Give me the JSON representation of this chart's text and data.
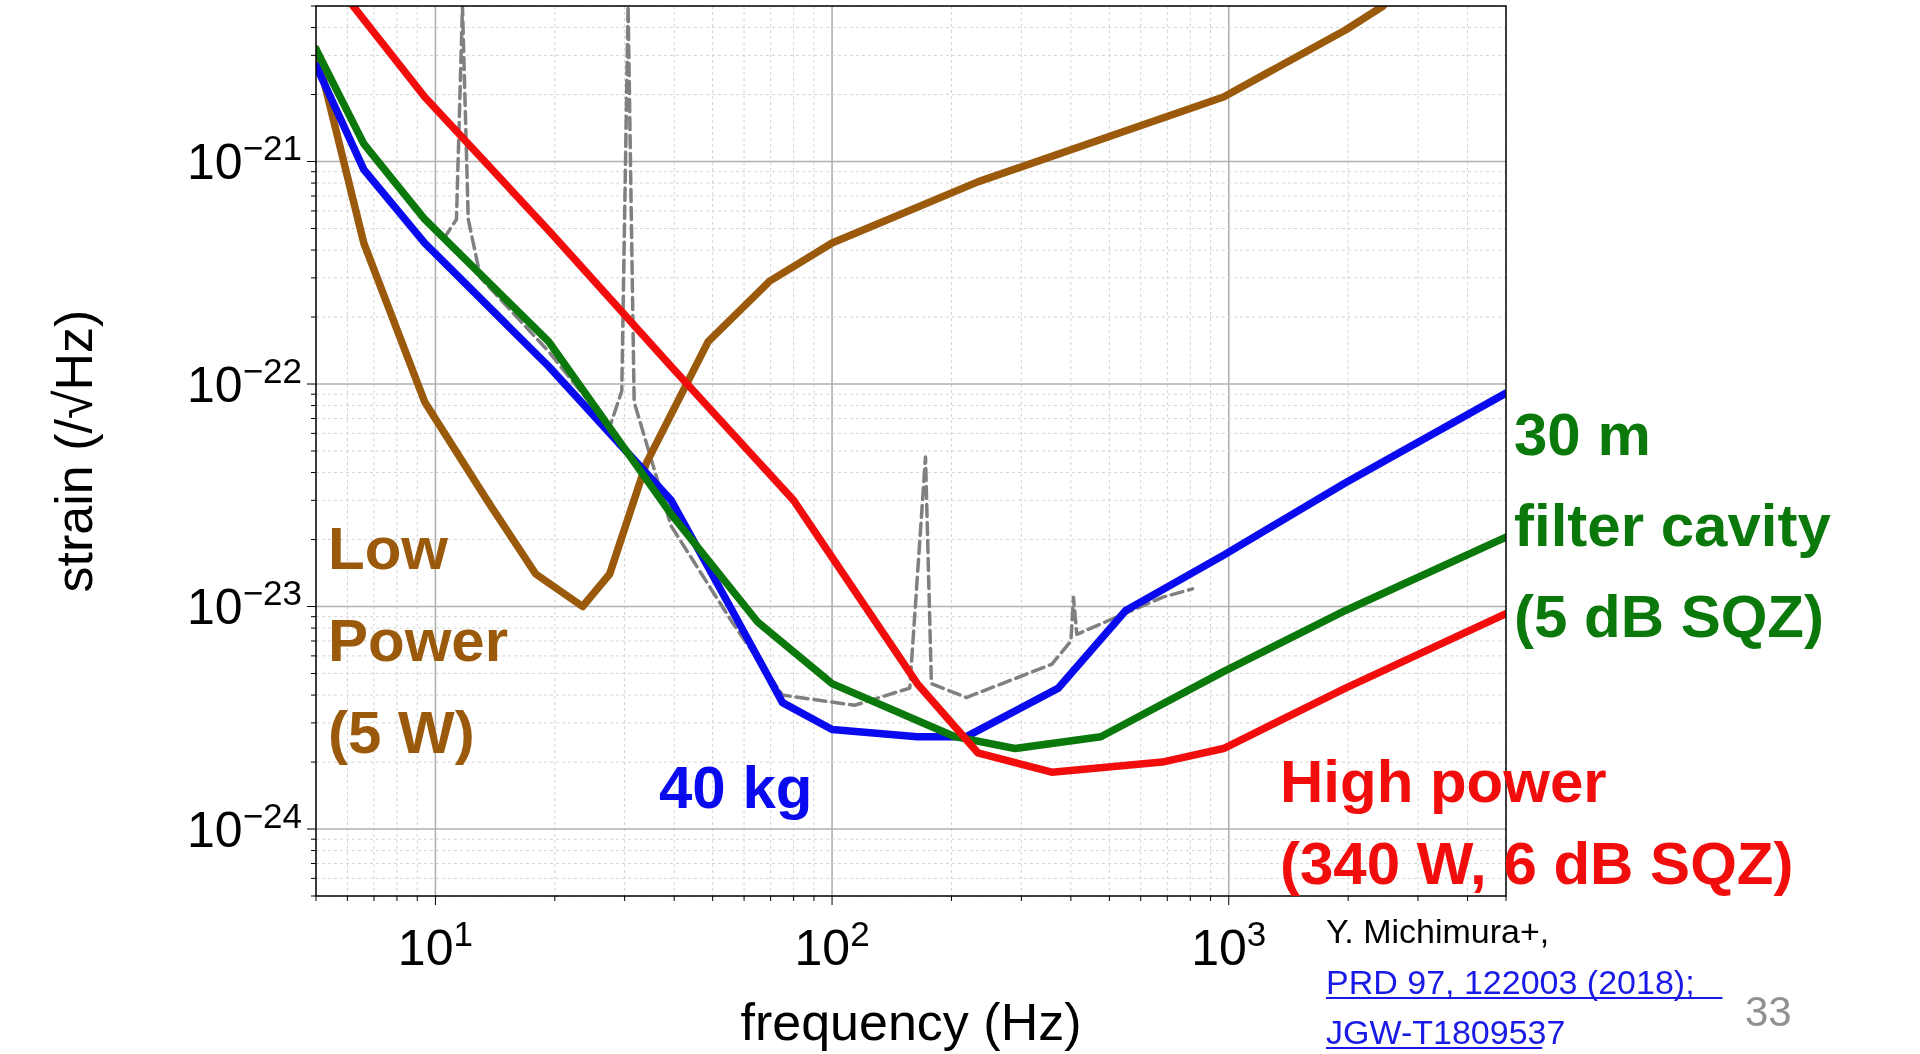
{
  "chart_data": {
    "type": "line",
    "xlabel": "frequency (Hz)",
    "ylabel": "strain (/√Hz)",
    "log": "xy",
    "grid": true,
    "xlim": [
      5,
      5000
    ],
    "ylim": [
      5e-25,
      5e-21
    ],
    "xticks": [
      {
        "value": 5,
        "label": null
      },
      {
        "value": 6,
        "label": null
      },
      {
        "value": 7,
        "label": null
      },
      {
        "value": 8,
        "label": null
      },
      {
        "value": 9,
        "label": null
      },
      {
        "value": 10,
        "label": "10$^{1}$"
      },
      {
        "value": 20,
        "label": null
      },
      {
        "value": 30,
        "label": null
      },
      {
        "value": 40,
        "label": null
      },
      {
        "value": 50,
        "label": null
      },
      {
        "value": 60,
        "label": null
      },
      {
        "value": 70,
        "label": null
      },
      {
        "value": 80,
        "label": null
      },
      {
        "value": 90,
        "label": null
      },
      {
        "value": 100,
        "label": "10$^{2}$"
      },
      {
        "value": 200,
        "label": null
      },
      {
        "value": 300,
        "label": null
      },
      {
        "value": 400,
        "label": null
      },
      {
        "value": 500,
        "label": null
      },
      {
        "value": 600,
        "label": null
      },
      {
        "value": 700,
        "label": null
      },
      {
        "value": 800,
        "label": null
      },
      {
        "value": 900,
        "label": null
      },
      {
        "value": 1000,
        "label": "10$^{3}$"
      },
      {
        "value": 2000,
        "label": null
      },
      {
        "value": 3000,
        "label": null
      },
      {
        "value": 4000,
        "label": null
      },
      {
        "value": 5000,
        "label": null
      }
    ],
    "yticks": [
      {
        "value": 5e-25,
        "label": null
      },
      {
        "value": 6e-25,
        "label": null
      },
      {
        "value": 7e-25,
        "label": null
      },
      {
        "value": 8e-25,
        "label": null
      },
      {
        "value": 9e-25,
        "label": null
      },
      {
        "value": 1e-24,
        "label": "10$^{−24}$"
      },
      {
        "value": 2e-24,
        "label": null
      },
      {
        "value": 3e-24,
        "label": null
      },
      {
        "value": 4e-24,
        "label": null
      },
      {
        "value": 5e-24,
        "label": null
      },
      {
        "value": 6e-24,
        "label": null
      },
      {
        "value": 7e-24,
        "label": null
      },
      {
        "value": 8e-24,
        "label": null
      },
      {
        "value": 9e-24,
        "label": null
      },
      {
        "value": 1e-23,
        "label": "10$^{−23}$"
      },
      {
        "value": 2e-23,
        "label": null
      },
      {
        "value": 3e-23,
        "label": null
      },
      {
        "value": 4e-23,
        "label": null
      },
      {
        "value": 5e-23,
        "label": null
      },
      {
        "value": 6e-23,
        "label": null
      },
      {
        "value": 7e-23,
        "label": null
      },
      {
        "value": 8e-23,
        "label": null
      },
      {
        "value": 9e-23,
        "label": null
      },
      {
        "value": 1e-22,
        "label": "10$^{−22}$"
      },
      {
        "value": 2e-22,
        "label": null
      },
      {
        "value": 3e-22,
        "label": null
      },
      {
        "value": 4e-22,
        "label": null
      },
      {
        "value": 5e-22,
        "label": null
      },
      {
        "value": 6e-22,
        "label": null
      },
      {
        "value": 7e-22,
        "label": null
      },
      {
        "value": 8e-22,
        "label": null
      },
      {
        "value": 9e-22,
        "label": null
      },
      {
        "value": 1e-21,
        "label": "10$^{−21}$"
      },
      {
        "value": 2e-21,
        "label": null
      },
      {
        "value": 3e-21,
        "label": null
      },
      {
        "value": 4e-21,
        "label": null
      },
      {
        "value": 5e-21,
        "label": null
      }
    ],
    "series": [
      {
        "color": "#808080",
        "line_style": "dashed",
        "x": [
          10.5,
          11.3,
          11.7,
          12.1,
          13,
          19.3,
          27.5,
          29.5,
          30.6,
          31.7,
          39.3,
          56,
          75,
          114,
          157,
          172,
          178,
          218,
          358,
          400,
          406,
          414,
          680,
          810
        ],
        "values": [
          4.5e-22,
          5.5e-22,
          5e-21,
          5.5e-22,
          3e-22,
          1.4e-22,
          6.4e-23,
          9.3e-23,
          5e-21,
          8.3e-23,
          2.3e-23,
          8.5e-24,
          4e-24,
          3.6e-24,
          4.3e-24,
          4.7e-23,
          4.5e-24,
          3.9e-24,
          5.5e-24,
          7e-24,
          1.1e-23,
          7.5e-24,
          1.1e-23,
          1.2e-23
        ]
      },
      {
        "name": "Low\nPower\n(5 W)",
        "color": "#9b5a0b",
        "x": [
          5,
          6.6,
          9.4,
          13.5,
          17.9,
          23.5,
          27.5,
          34,
          48.7,
          69.6,
          100,
          233,
          970,
          1970,
          2450
        ],
        "values": [
          3.2e-21,
          4.3e-22,
          8.3e-23,
          3e-23,
          1.4e-23,
          1e-23,
          1.4e-23,
          4.4e-23,
          1.55e-22,
          2.9e-22,
          4.3e-22,
          8.1e-22,
          1.95e-21,
          3.9e-21,
          5e-21
        ]
      },
      {
        "name": "40 kg",
        "color": "#0a0aef",
        "x": [
          5,
          6.6,
          9.4,
          19.3,
          39.3,
          56,
          75,
          100,
          164,
          218,
          372,
          550,
          970,
          1970,
          5000
        ],
        "values": [
          2.7e-21,
          9.2e-22,
          4.3e-22,
          1.2e-22,
          3e-23,
          9.6e-24,
          3.7e-24,
          2.8e-24,
          2.6e-24,
          2.6e-24,
          4.3e-24,
          9.6e-24,
          1.7e-23,
          3.6e-23,
          9.1e-23
        ]
      },
      {
        "name": "30 m\nfilter cavity\n(5 dB SQZ)",
        "color": "#0a780a",
        "x": [
          5,
          6.6,
          9.4,
          19.3,
          39.3,
          65,
          100,
          204,
          289,
          476,
          970,
          1970,
          5000
        ],
        "values": [
          3.2e-21,
          1.2e-21,
          5.5e-22,
          1.55e-22,
          2.6e-23,
          8.5e-24,
          4.5e-24,
          2.6e-24,
          2.3e-24,
          2.6e-24,
          5.1e-24,
          9.6e-24,
          2.05e-23
        ]
      },
      {
        "name": "High power\n(340 W, 6 dB SQZ)",
        "color": "#f20d0d",
        "x": [
          6.2,
          9.4,
          19.3,
          39.3,
          80,
          164,
          233,
          358,
          680,
          970,
          1970,
          5000
        ],
        "values": [
          5e-21,
          1.95e-21,
          4.9e-22,
          1.2e-22,
          3e-23,
          4.5e-24,
          2.2e-24,
          1.8e-24,
          2e-24,
          2.3e-24,
          4.3e-24,
          9.3e-24
        ]
      }
    ],
    "annotations": [
      "Y. Michimura+,",
      "PRD 97, 122003 (2018);",
      "JGW-T1809537",
      "33"
    ]
  }
}
